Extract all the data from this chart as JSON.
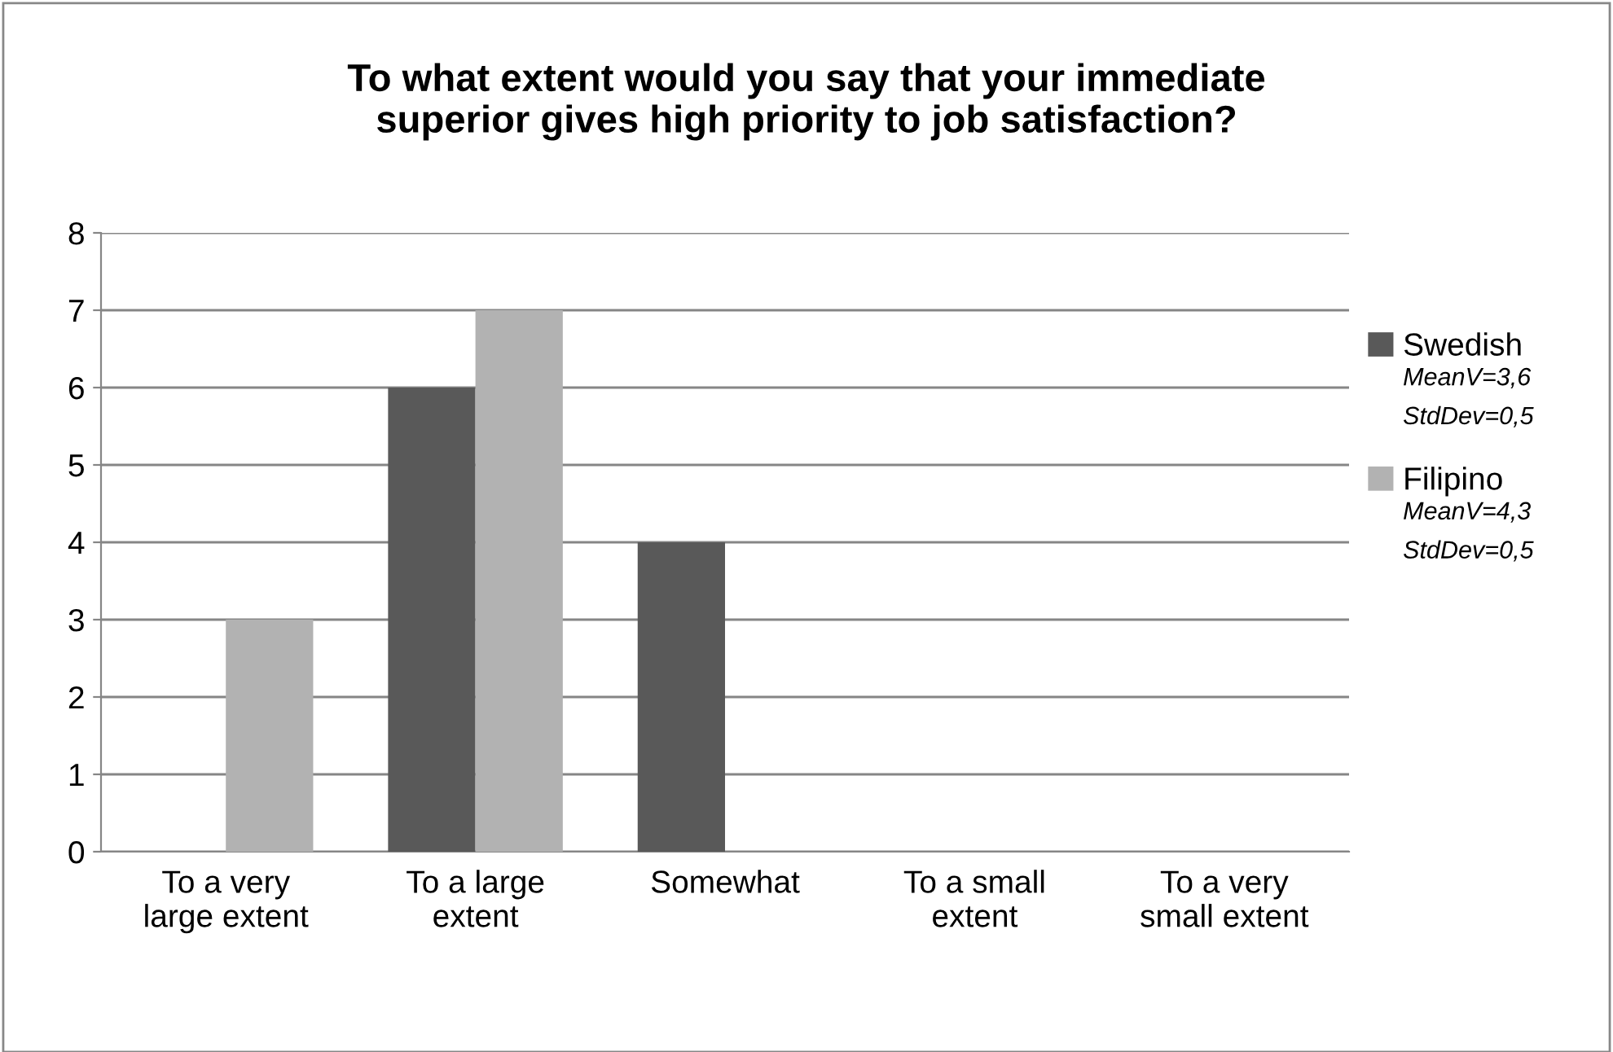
{
  "chart_data": {
    "type": "bar",
    "title": "To what extent would you say that your immediate\nsuperior gives high priority to job satisfaction?",
    "categories": [
      "To a very\nlarge extent",
      "To a large\nextent",
      "Somewhat",
      "To a small\nextent",
      "To a very\nsmall extent"
    ],
    "series": [
      {
        "name": "Swedish",
        "color": "#595959",
        "values": [
          0,
          6,
          4,
          0,
          0
        ]
      },
      {
        "name": "Filipino",
        "color": "#b2b2b2",
        "values": [
          3,
          7,
          0,
          0,
          0
        ]
      }
    ],
    "annotations": [
      "MeanV=3,6",
      "StdDev=0,5",
      "MeanV=4,3",
      "StdDev=0,5"
    ],
    "ylim": [
      0,
      8
    ],
    "yticks": [
      0,
      1,
      2,
      3,
      4,
      5,
      6,
      7,
      8
    ],
    "grid": "y",
    "legend": "right"
  }
}
